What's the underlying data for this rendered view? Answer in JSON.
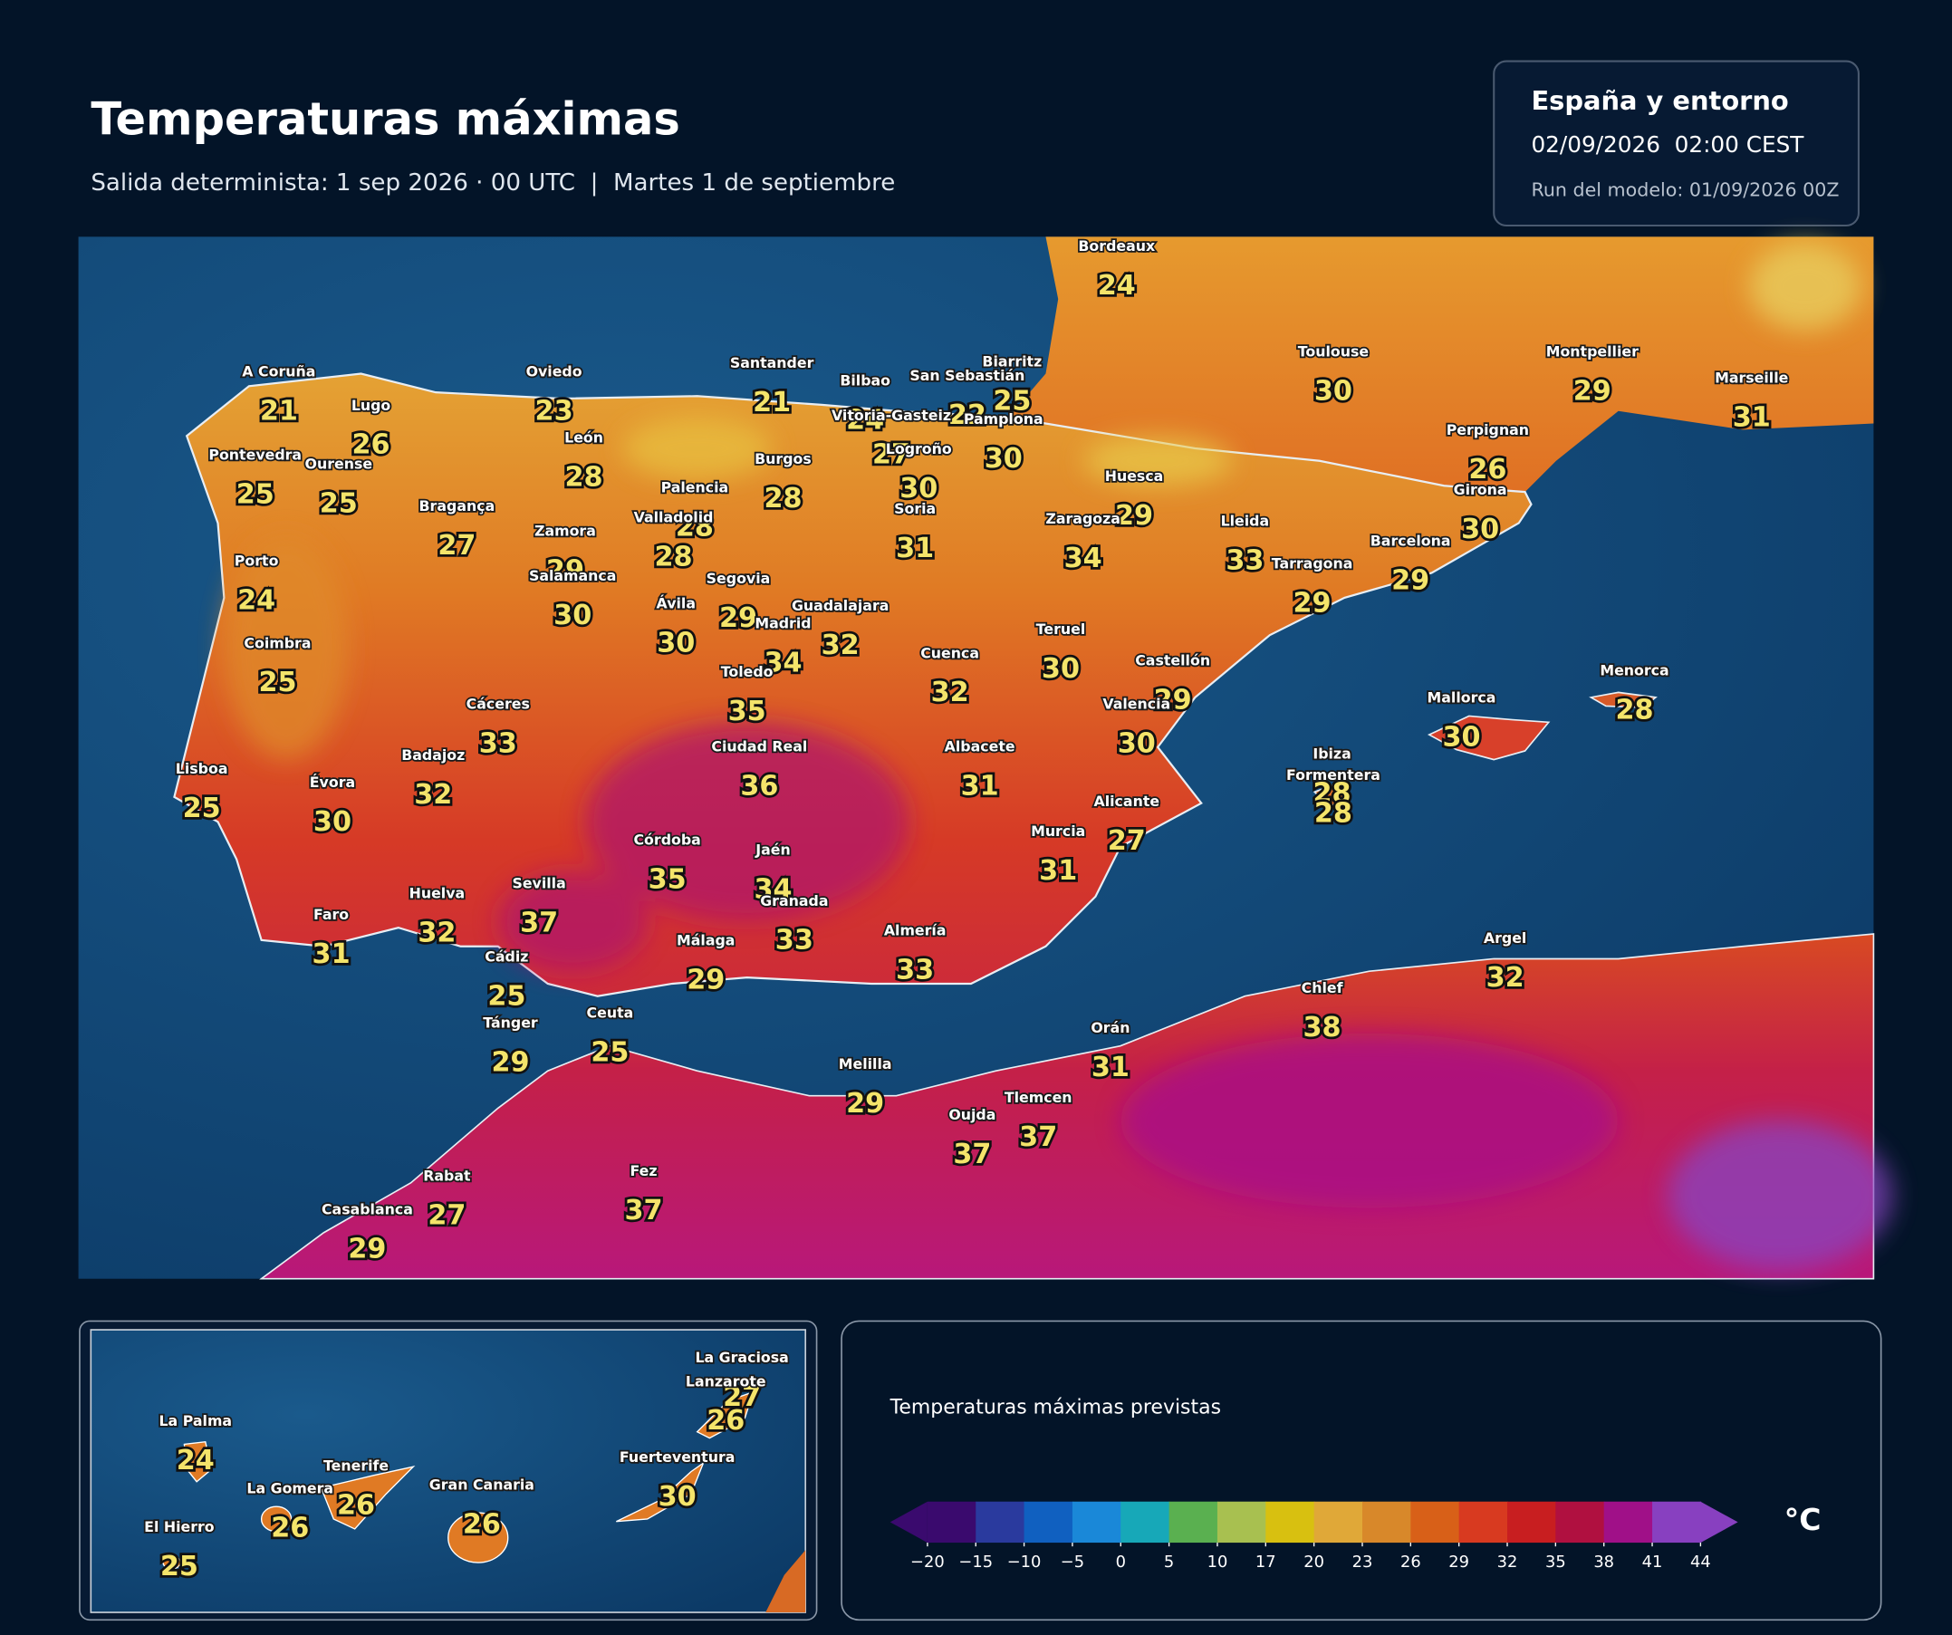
{
  "header": {
    "title": "Temperaturas máximas",
    "subtitle": "Salida determinista: 1 sep 2026 · 00 UTC  |  Martes 1 de septiembre"
  },
  "info": {
    "region": "España y entorno",
    "valid": "02/09/2026  02:00 CEST",
    "run": "Run del modelo: 01/09/2026 00Z"
  },
  "cities": [
    {
      "name": "A Coruña",
      "value": 21
    },
    {
      "name": "Lugo",
      "value": 26
    },
    {
      "name": "Oviedo",
      "value": 23
    },
    {
      "name": "Santander",
      "value": 21
    },
    {
      "name": "Bilbao",
      "value": 24
    },
    {
      "name": "San Sebastián",
      "value": 22
    },
    {
      "name": "Biarritz",
      "value": 25
    },
    {
      "name": "Vitoria-Gasteiz",
      "value": 27
    },
    {
      "name": "Pamplona",
      "value": 30
    },
    {
      "name": "Logroño",
      "value": 30
    },
    {
      "name": "Pontevedra",
      "value": 25
    },
    {
      "name": "Ourense",
      "value": 25
    },
    {
      "name": "León",
      "value": 28
    },
    {
      "name": "Burgos",
      "value": 28
    },
    {
      "name": "Palencia",
      "value": 28
    },
    {
      "name": "Valladolid",
      "value": 28
    },
    {
      "name": "Bragança",
      "value": 27
    },
    {
      "name": "Zamora",
      "value": 29
    },
    {
      "name": "Salamanca",
      "value": 30
    },
    {
      "name": "Soria",
      "value": 31
    },
    {
      "name": "Huesca",
      "value": 29
    },
    {
      "name": "Zaragoza",
      "value": 34
    },
    {
      "name": "Lleida",
      "value": 33
    },
    {
      "name": "Girona",
      "value": 30
    },
    {
      "name": "Perpignan",
      "value": 26
    },
    {
      "name": "Barcelona",
      "value": 29
    },
    {
      "name": "Tarragona",
      "value": 29
    },
    {
      "name": "Toulouse",
      "value": 30
    },
    {
      "name": "Montpellier",
      "value": 29
    },
    {
      "name": "Marseille",
      "value": 31
    },
    {
      "name": "Bordeaux",
      "value": 24
    },
    {
      "name": "Porto",
      "value": 24
    },
    {
      "name": "Coimbra",
      "value": 25
    },
    {
      "name": "Lisboa",
      "value": 25
    },
    {
      "name": "Évora",
      "value": 30
    },
    {
      "name": "Segovia",
      "value": 29
    },
    {
      "name": "Ávila",
      "value": 30
    },
    {
      "name": "Madrid",
      "value": 34
    },
    {
      "name": "Guadalajara",
      "value": 32
    },
    {
      "name": "Toledo",
      "value": 35
    },
    {
      "name": "Cuenca",
      "value": 32
    },
    {
      "name": "Teruel",
      "value": 30
    },
    {
      "name": "Castellón",
      "value": 29
    },
    {
      "name": "Valencia",
      "value": 30
    },
    {
      "name": "Cáceres",
      "value": 33
    },
    {
      "name": "Badajoz",
      "value": 32
    },
    {
      "name": "Ciudad Real",
      "value": 36
    },
    {
      "name": "Albacete",
      "value": 31
    },
    {
      "name": "Alicante",
      "value": 27
    },
    {
      "name": "Murcia",
      "value": 31
    },
    {
      "name": "Córdoba",
      "value": 35
    },
    {
      "name": "Jaén",
      "value": 34
    },
    {
      "name": "Granada",
      "value": 33
    },
    {
      "name": "Sevilla",
      "value": 37
    },
    {
      "name": "Huelva",
      "value": 32
    },
    {
      "name": "Faro",
      "value": 31
    },
    {
      "name": "Almería",
      "value": 33
    },
    {
      "name": "Málaga",
      "value": 29
    },
    {
      "name": "Cádiz",
      "value": 25
    },
    {
      "name": "Tánger",
      "value": 29
    },
    {
      "name": "Ceuta",
      "value": 25
    },
    {
      "name": "Melilla",
      "value": 29
    },
    {
      "name": "Orán",
      "value": 31
    },
    {
      "name": "Tlemcen",
      "value": 37
    },
    {
      "name": "Oujda",
      "value": 37
    },
    {
      "name": "Chlef",
      "value": 38
    },
    {
      "name": "Argel",
      "value": 32
    },
    {
      "name": "Fez",
      "value": 37
    },
    {
      "name": "Rabat",
      "value": 27
    },
    {
      "name": "Casablanca",
      "value": 29
    },
    {
      "name": "Mallorca",
      "value": 30
    },
    {
      "name": "Menorca",
      "value": 28
    },
    {
      "name": "Ibiza",
      "value": 28
    },
    {
      "name": "Formentera",
      "value": 28
    }
  ],
  "canarias": [
    {
      "name": "La Graciosa",
      "value": 27
    },
    {
      "name": "Lanzarote",
      "value": 26
    },
    {
      "name": "La Palma",
      "value": 24
    },
    {
      "name": "Tenerife",
      "value": 26
    },
    {
      "name": "La Gomera",
      "value": 26
    },
    {
      "name": "Gran Canaria",
      "value": 26
    },
    {
      "name": "Fuerteventura",
      "value": 30
    },
    {
      "name": "El Hierro",
      "value": 25
    }
  ],
  "legend": {
    "title": "Temperaturas máximas previstas",
    "unit": "°C",
    "ticks": [
      {
        "value": -20,
        "label": "−20"
      },
      {
        "value": -15,
        "label": "−15"
      },
      {
        "value": -10,
        "label": "−10"
      },
      {
        "value": -5,
        "label": "−5"
      },
      0,
      5,
      10,
      17,
      20,
      23,
      26,
      29,
      32,
      35,
      38,
      41,
      44
    ],
    "colors": [
      "#3a0a6e",
      "#2a3a9e",
      "#1060c0",
      "#1a88d8",
      "#17a8b8",
      "#5ab050",
      "#a8c050",
      "#d8c010",
      "#e0a838",
      "#d8882a",
      "#d86018",
      "#d83a20",
      "#c81e20",
      "#b01040",
      "#a01088",
      "#8840c0"
    ]
  }
}
